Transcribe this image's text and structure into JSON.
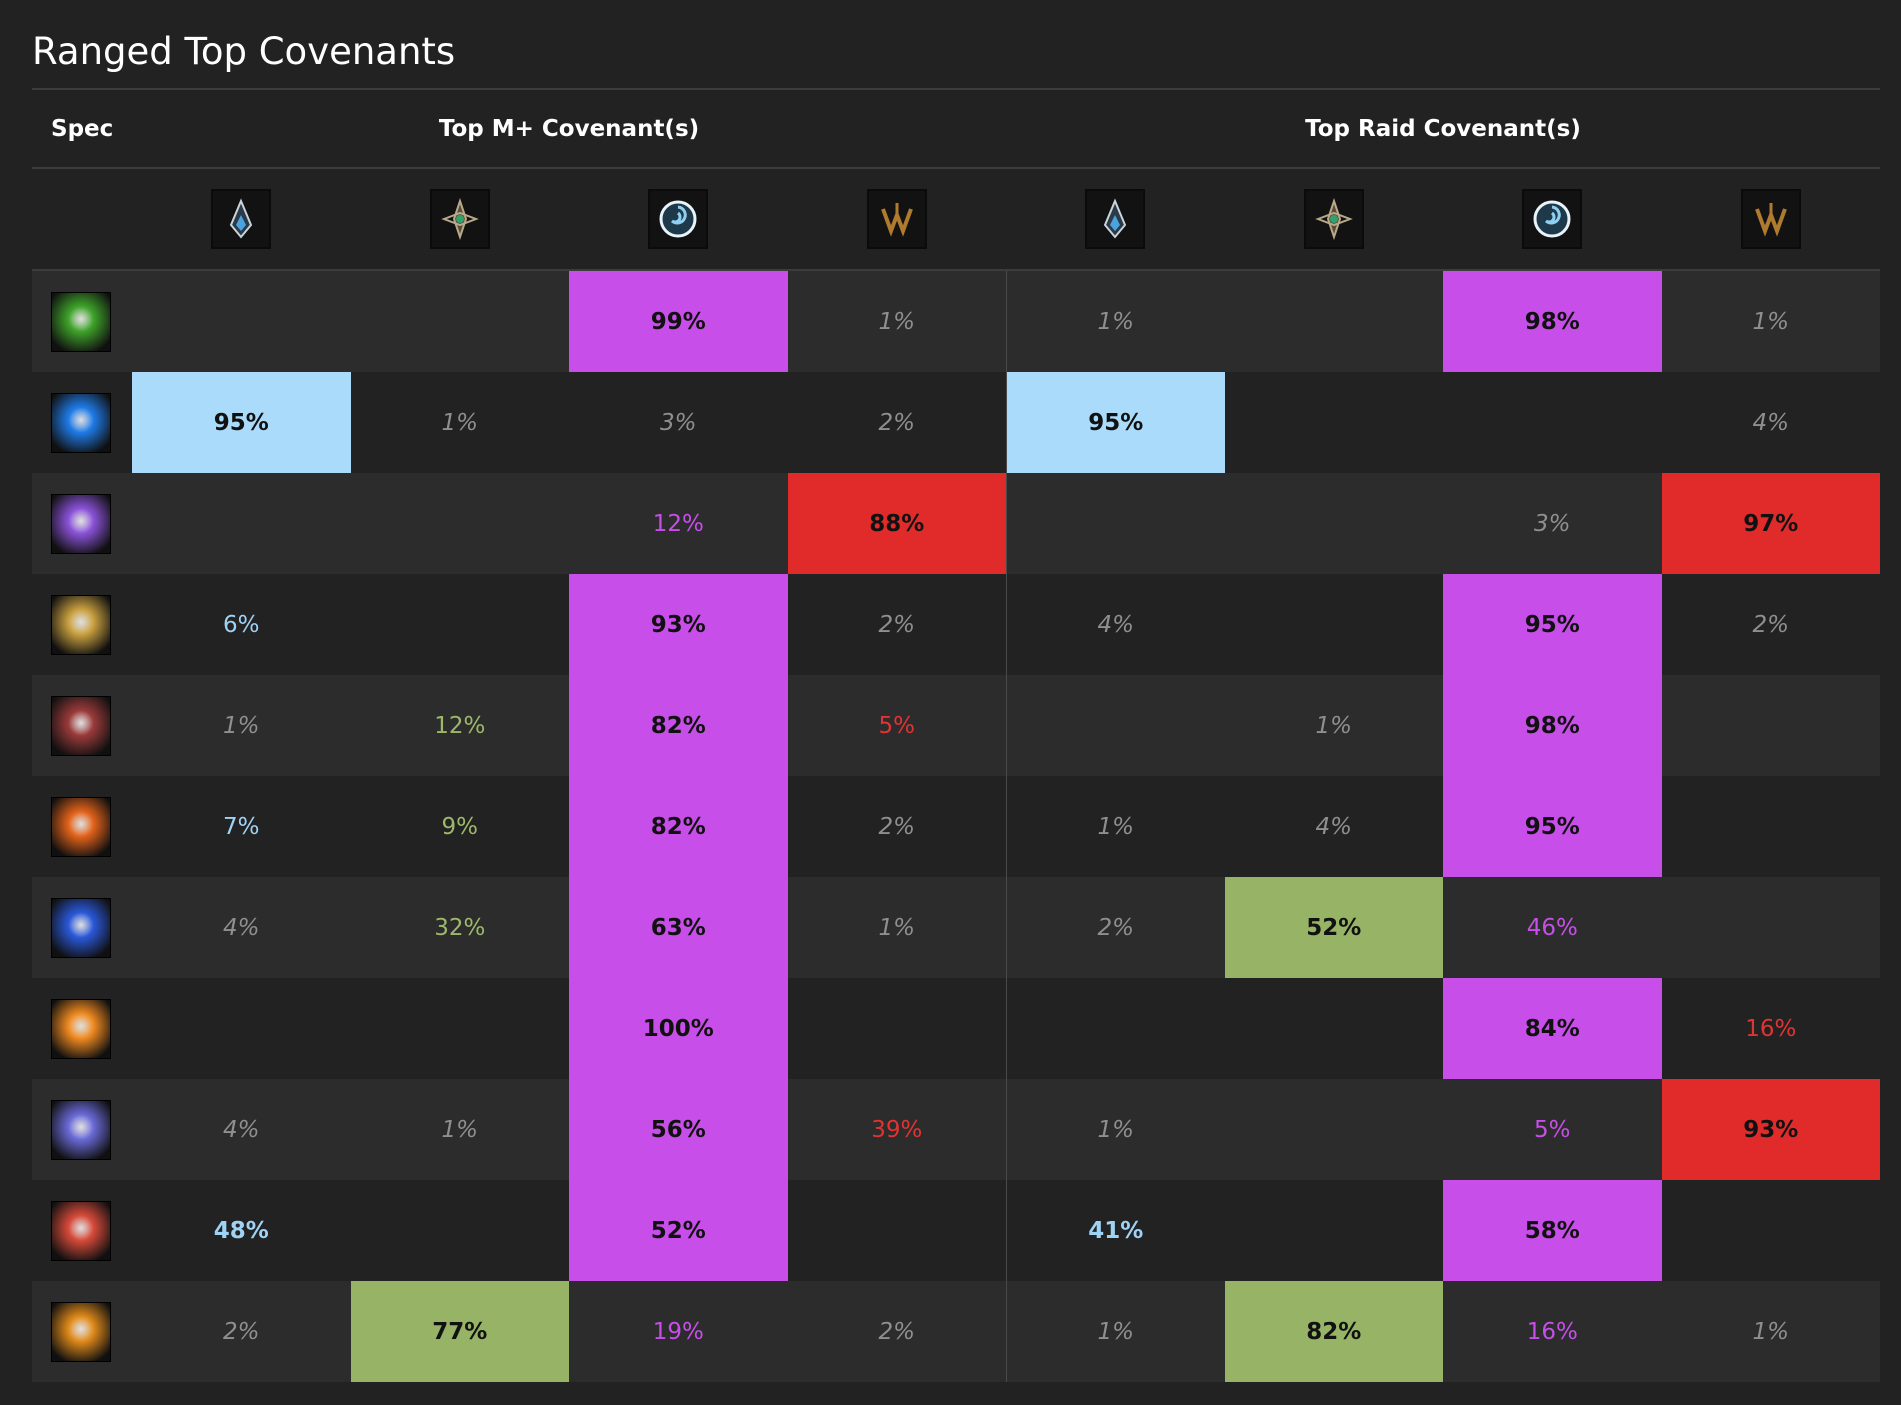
{
  "title": "Ranged Top Covenants",
  "headers": {
    "spec": "Spec",
    "mplus": "Top M+ Covenant(s)",
    "raid": "Top Raid Covenant(s)"
  },
  "covenants": [
    {
      "name": "kyrian-icon",
      "color": "#4aa3df"
    },
    {
      "name": "night-fae-icon",
      "color": "#2fa36b"
    },
    {
      "name": "venthyr-icon",
      "color": "#8fd0f0"
    },
    {
      "name": "necrolord-icon",
      "color": "#b07a2f"
    }
  ],
  "colors": {
    "kyrian": "#aadbfb",
    "night_fae": "#97b366",
    "venthyr": "#c74ee8",
    "necrolord": "#e12b2b"
  },
  "rows": [
    {
      "icon": "affliction-warlock-icon",
      "iconColor": "#3fa32a",
      "cells": [
        {
          "t": "",
          "k": "none"
        },
        {
          "t": "",
          "k": "none"
        },
        {
          "t": "99%",
          "k": "venthyr"
        },
        {
          "t": "1%",
          "k": "gray"
        },
        {
          "t": "1%",
          "k": "gray"
        },
        {
          "t": "",
          "k": "none"
        },
        {
          "t": "98%",
          "k": "venthyr"
        },
        {
          "t": "1%",
          "k": "gray"
        }
      ]
    },
    {
      "icon": "frost-mage-arcane-icon",
      "iconColor": "#1f7be8",
      "cells": [
        {
          "t": "95%",
          "k": "kyrian"
        },
        {
          "t": "1%",
          "k": "gray"
        },
        {
          "t": "3%",
          "k": "gray"
        },
        {
          "t": "2%",
          "k": "gray"
        },
        {
          "t": "95%",
          "k": "kyrian"
        },
        {
          "t": "",
          "k": "none"
        },
        {
          "t": "",
          "k": "none"
        },
        {
          "t": "4%",
          "k": "gray"
        }
      ]
    },
    {
      "icon": "shadow-priest-icon",
      "iconColor": "#8a52d8",
      "cells": [
        {
          "t": "",
          "k": "none"
        },
        {
          "t": "",
          "k": "none"
        },
        {
          "t": "12%",
          "k": "tpurple"
        },
        {
          "t": "88%",
          "k": "necrolord"
        },
        {
          "t": "",
          "k": "none"
        },
        {
          "t": "",
          "k": "none"
        },
        {
          "t": "3%",
          "k": "gray"
        },
        {
          "t": "97%",
          "k": "necrolord"
        }
      ]
    },
    {
      "icon": "beast-mastery-hunter-icon",
      "iconColor": "#c9a040",
      "cells": [
        {
          "t": "6%",
          "k": "tblue"
        },
        {
          "t": "",
          "k": "none"
        },
        {
          "t": "93%",
          "k": "venthyr"
        },
        {
          "t": "2%",
          "k": "gray"
        },
        {
          "t": "4%",
          "k": "gray"
        },
        {
          "t": "",
          "k": "none"
        },
        {
          "t": "95%",
          "k": "venthyr"
        },
        {
          "t": "2%",
          "k": "gray"
        }
      ]
    },
    {
      "icon": "demonology-warlock-icon",
      "iconColor": "#9a3a3a",
      "cells": [
        {
          "t": "1%",
          "k": "gray"
        },
        {
          "t": "12%",
          "k": "tgreen"
        },
        {
          "t": "82%",
          "k": "venthyr"
        },
        {
          "t": "5%",
          "k": "tred"
        },
        {
          "t": "",
          "k": "none"
        },
        {
          "t": "1%",
          "k": "gray"
        },
        {
          "t": "98%",
          "k": "venthyr"
        },
        {
          "t": "",
          "k": "none"
        }
      ]
    },
    {
      "icon": "fire-mage-icon",
      "iconColor": "#e2621a",
      "cells": [
        {
          "t": "7%",
          "k": "tblue"
        },
        {
          "t": "9%",
          "k": "tgreen"
        },
        {
          "t": "82%",
          "k": "venthyr"
        },
        {
          "t": "2%",
          "k": "gray"
        },
        {
          "t": "1%",
          "k": "gray"
        },
        {
          "t": "4%",
          "k": "gray"
        },
        {
          "t": "95%",
          "k": "venthyr"
        },
        {
          "t": "",
          "k": "none"
        }
      ]
    },
    {
      "icon": "elemental-shaman-icon",
      "iconColor": "#2a58d8",
      "cells": [
        {
          "t": "4%",
          "k": "gray"
        },
        {
          "t": "32%",
          "k": "tgreen"
        },
        {
          "t": "63%",
          "k": "venthyr"
        },
        {
          "t": "1%",
          "k": "gray"
        },
        {
          "t": "2%",
          "k": "gray"
        },
        {
          "t": "52%",
          "k": "night_fae"
        },
        {
          "t": "46%",
          "k": "tpurple"
        },
        {
          "t": "",
          "k": "none"
        }
      ]
    },
    {
      "icon": "fire-mage-pyro-icon",
      "iconColor": "#f08a20",
      "cells": [
        {
          "t": "",
          "k": "none"
        },
        {
          "t": "",
          "k": "none"
        },
        {
          "t": "100%",
          "k": "venthyr"
        },
        {
          "t": "",
          "k": "none"
        },
        {
          "t": "",
          "k": "none"
        },
        {
          "t": "",
          "k": "none"
        },
        {
          "t": "84%",
          "k": "venthyr"
        },
        {
          "t": "16%",
          "k": "tred"
        }
      ]
    },
    {
      "icon": "frost-mage-icon",
      "iconColor": "#6a6ad8",
      "cells": [
        {
          "t": "4%",
          "k": "gray"
        },
        {
          "t": "1%",
          "k": "gray"
        },
        {
          "t": "56%",
          "k": "venthyr"
        },
        {
          "t": "39%",
          "k": "tred"
        },
        {
          "t": "1%",
          "k": "gray"
        },
        {
          "t": "",
          "k": "none"
        },
        {
          "t": "5%",
          "k": "tpurple"
        },
        {
          "t": "93%",
          "k": "necrolord"
        }
      ]
    },
    {
      "icon": "marksmanship-hunter-icon",
      "iconColor": "#d64a3a",
      "cells": [
        {
          "t": "48%",
          "k": "tblue-bold"
        },
        {
          "t": "",
          "k": "none"
        },
        {
          "t": "52%",
          "k": "venthyr"
        },
        {
          "t": "",
          "k": "none"
        },
        {
          "t": "41%",
          "k": "tblue-bold"
        },
        {
          "t": "",
          "k": "none"
        },
        {
          "t": "58%",
          "k": "venthyr"
        },
        {
          "t": "",
          "k": "none"
        }
      ]
    },
    {
      "icon": "destruction-warlock-icon",
      "iconColor": "#e08a1a",
      "cells": [
        {
          "t": "2%",
          "k": "gray"
        },
        {
          "t": "77%",
          "k": "night_fae"
        },
        {
          "t": "19%",
          "k": "tpurple"
        },
        {
          "t": "2%",
          "k": "gray"
        },
        {
          "t": "1%",
          "k": "gray"
        },
        {
          "t": "82%",
          "k": "night_fae"
        },
        {
          "t": "16%",
          "k": "tpurple"
        },
        {
          "t": "1%",
          "k": "gray"
        }
      ]
    }
  ]
}
